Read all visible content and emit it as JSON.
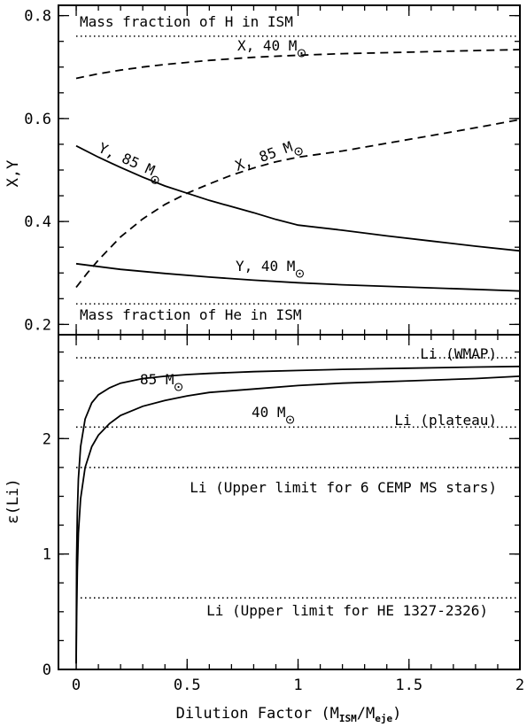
{
  "chart_data": [
    {
      "type": "line",
      "panel": "top",
      "ylabel": "X,Y",
      "xlim": [
        -0.08,
        2
      ],
      "ylim": [
        0.18,
        0.82
      ],
      "yticks": [
        0.2,
        0.4,
        0.6,
        0.8
      ],
      "series": [
        {
          "label": {
            "text": "X, 40 M",
            "sub": "⊙"
          },
          "style": "dashed",
          "x": [
            0.0,
            0.1,
            0.2,
            0.3,
            0.4,
            0.5,
            0.6,
            0.7,
            0.8,
            0.9,
            1.0,
            1.2,
            1.4,
            1.6,
            1.8,
            2.0
          ],
          "values": [
            0.678,
            0.687,
            0.694,
            0.7,
            0.705,
            0.709,
            0.713,
            0.716,
            0.719,
            0.721,
            0.723,
            0.726,
            0.728,
            0.73,
            0.732,
            0.734
          ]
        },
        {
          "label": {
            "text": "X, 85 M",
            "sub": "⊙"
          },
          "style": "dashed",
          "x": [
            0.0,
            0.05,
            0.1,
            0.2,
            0.3,
            0.4,
            0.5,
            0.6,
            0.7,
            0.8,
            0.9,
            1.0,
            1.2,
            1.4,
            1.6,
            1.8,
            2.0
          ],
          "values": [
            0.272,
            0.3,
            0.325,
            0.37,
            0.405,
            0.433,
            0.455,
            0.473,
            0.49,
            0.504,
            0.516,
            0.525,
            0.537,
            0.552,
            0.567,
            0.582,
            0.598
          ]
        },
        {
          "label": {
            "text": "Y, 85 M",
            "sub": "⊙"
          },
          "style": "solid",
          "x": [
            0.0,
            0.1,
            0.2,
            0.3,
            0.4,
            0.5,
            0.6,
            0.7,
            0.8,
            0.9,
            1.0,
            1.2,
            1.4,
            1.6,
            1.8,
            2.0
          ],
          "values": [
            0.547,
            0.525,
            0.505,
            0.486,
            0.469,
            0.455,
            0.441,
            0.429,
            0.417,
            0.404,
            0.393,
            0.383,
            0.372,
            0.362,
            0.352,
            0.343
          ]
        },
        {
          "label": {
            "text": "Y, 40 M",
            "sub": "⊙"
          },
          "style": "solid",
          "x": [
            0.0,
            0.2,
            0.4,
            0.6,
            0.8,
            1.0,
            1.2,
            1.4,
            1.6,
            1.8,
            2.0
          ],
          "values": [
            0.318,
            0.307,
            0.299,
            0.292,
            0.286,
            0.281,
            0.277,
            0.274,
            0.271,
            0.268,
            0.265
          ]
        }
      ],
      "reference_lines": [
        {
          "label": "Mass fraction of H in ISM",
          "y": 0.76
        },
        {
          "label": "Mass fraction of He in ISM",
          "y": 0.24
        }
      ]
    },
    {
      "type": "line",
      "panel": "bottom",
      "xlabel": {
        "text": "Dilution Factor (M",
        "sub1": "ISM",
        "mid": "/M",
        "sub2": "eje",
        "end": ")"
      },
      "ylabel": "ε(Li)",
      "xlim": [
        -0.08,
        2
      ],
      "ylim": [
        0,
        2.9
      ],
      "xticks": [
        0,
        0.5,
        1,
        1.5,
        2
      ],
      "xtick_labels": [
        "0",
        "0.5",
        "1",
        "1.5",
        "2"
      ],
      "yticks": [
        0,
        1,
        2
      ],
      "series": [
        {
          "label": {
            "text": "85 M",
            "sub": "⊙"
          },
          "style": "solid",
          "x": [
            0.0,
            0.002,
            0.005,
            0.01,
            0.02,
            0.04,
            0.07,
            0.1,
            0.15,
            0.2,
            0.3,
            0.4,
            0.5,
            0.6,
            0.8,
            1.0,
            1.2,
            1.5,
            1.8,
            2.0
          ],
          "values": [
            0.05,
            0.95,
            1.35,
            1.65,
            1.93,
            2.17,
            2.31,
            2.38,
            2.44,
            2.48,
            2.52,
            2.54,
            2.555,
            2.565,
            2.58,
            2.59,
            2.6,
            2.61,
            2.62,
            2.625
          ]
        },
        {
          "label": {
            "text": "40 M",
            "sub": "⊙"
          },
          "style": "solid",
          "x": [
            0.0,
            0.002,
            0.005,
            0.01,
            0.02,
            0.04,
            0.07,
            0.1,
            0.15,
            0.2,
            0.3,
            0.4,
            0.5,
            0.6,
            0.8,
            1.0,
            1.2,
            1.5,
            1.8,
            2.0
          ],
          "values": [
            0.05,
            0.45,
            0.85,
            1.18,
            1.48,
            1.75,
            1.93,
            2.03,
            2.13,
            2.2,
            2.28,
            2.33,
            2.37,
            2.4,
            2.43,
            2.46,
            2.48,
            2.5,
            2.52,
            2.54
          ]
        }
      ],
      "reference_lines": [
        {
          "label": "Li (WMAP)",
          "y": 2.7
        },
        {
          "label": "Li (plateau)",
          "y": 2.1
        },
        {
          "label": "Li (Upper limit for 6 CEMP MS stars)",
          "y": 1.75
        },
        {
          "label": "Li (Upper limit for HE 1327-2326)",
          "y": 0.62
        }
      ]
    }
  ]
}
